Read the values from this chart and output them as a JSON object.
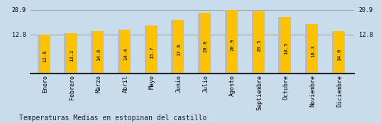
{
  "categories": [
    "Enero",
    "Febrero",
    "Marzo",
    "Abril",
    "Mayo",
    "Junio",
    "Julio",
    "Agosto",
    "Septiembre",
    "Octubre",
    "Noviembre",
    "Diciembre"
  ],
  "values": [
    12.8,
    13.2,
    14.0,
    14.4,
    15.7,
    17.6,
    20.0,
    20.9,
    20.5,
    18.5,
    16.3,
    14.0
  ],
  "bar_color_yellow": "#FFC200",
  "bar_color_gray": "#BBBBBB",
  "background_color": "#C8DCEC",
  "title": "Temperaturas Medias en estopinan del castillo",
  "yticks": [
    12.8,
    20.9
  ],
  "ymin": 0,
  "ymax": 22.5,
  "grid_color": "#999999",
  "value_label_color": "#333333",
  "axis_line_color": "#222222",
  "title_fontsize": 7.0,
  "tick_fontsize": 6.0,
  "value_fontsize": 5.2
}
